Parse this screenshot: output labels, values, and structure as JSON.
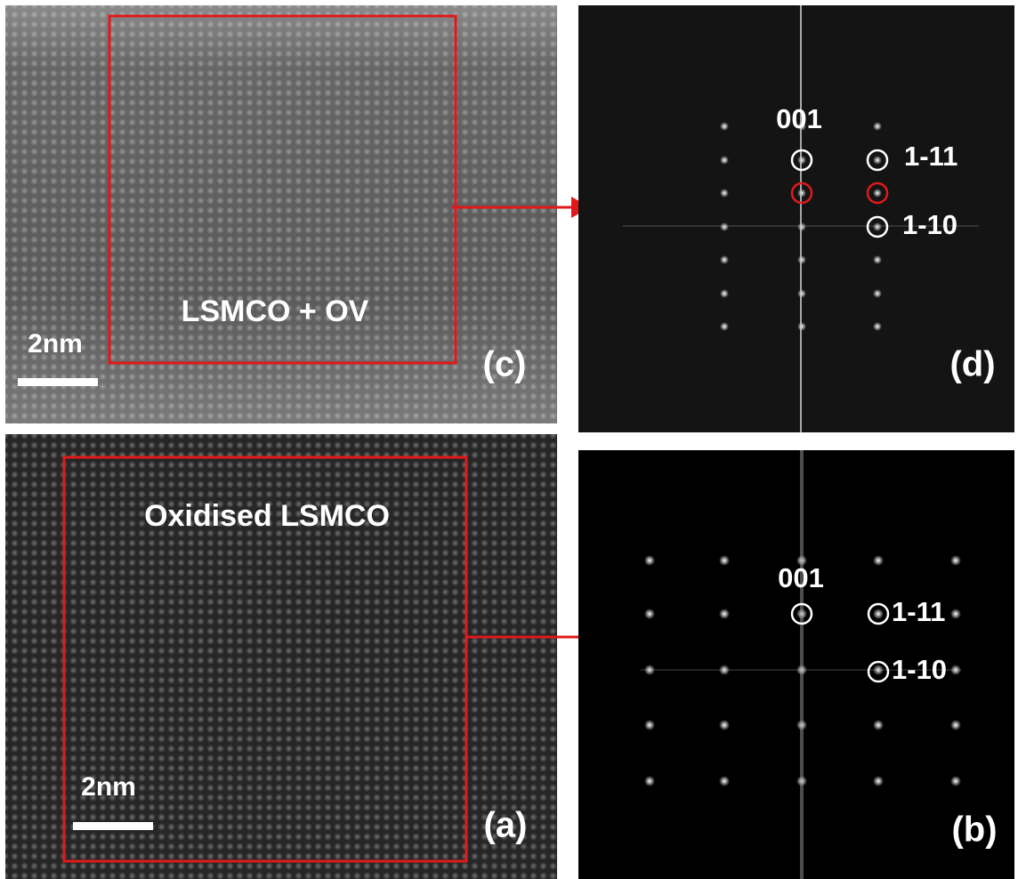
{
  "panels": [
    {
      "label": "(c)",
      "caption": "LSMCO + OV",
      "scale_bar": "2nm"
    },
    {
      "label": "(d)",
      "spots": [
        "001",
        "1-11",
        "1-10"
      ]
    },
    {
      "label": "(a)",
      "caption": "Oxidised LSMCO",
      "scale_bar": "2nm"
    },
    {
      "label": "(b)",
      "spots": [
        "001",
        "1-11",
        "1-10"
      ]
    }
  ]
}
